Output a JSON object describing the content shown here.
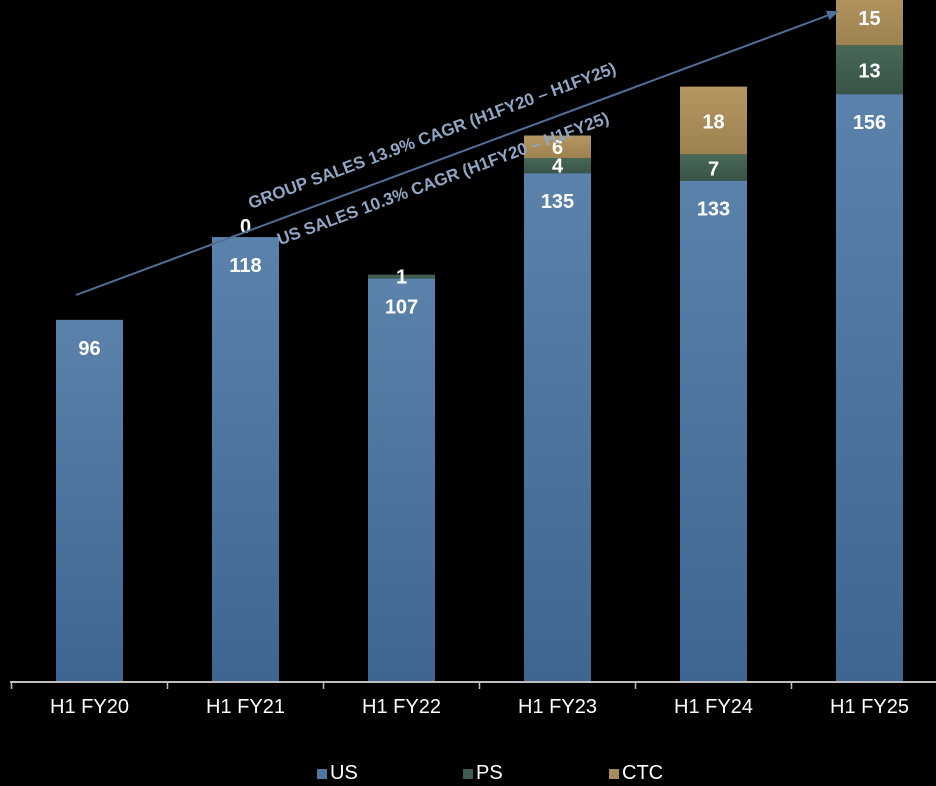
{
  "chart_data": {
    "type": "bar",
    "stacked": true,
    "categories": [
      "H1 FY20",
      "H1 FY21",
      "H1 FY22",
      "H1 FY23",
      "H1 FY24",
      "H1 FY25"
    ],
    "series": [
      {
        "name": "US",
        "color": "#4f77a0",
        "values": [
          96,
          118,
          107,
          135,
          133,
          156
        ]
      },
      {
        "name": "PS",
        "color": "#3f5c50",
        "values": [
          null,
          0,
          1,
          4,
          7,
          13
        ]
      },
      {
        "name": "CTC",
        "color": "#a98d58",
        "values": [
          null,
          null,
          null,
          6,
          18,
          15
        ]
      }
    ],
    "ylim": [
      0,
      200
    ],
    "grid": false,
    "legend_position": "bottom",
    "annotations": [
      "GROUP SALES 13.9% CAGR (H1FY20 – H1FY25)",
      "US SALES 10.3% CAGR (H1FY20 – H1FY25)"
    ],
    "colors": {
      "background": "#000000",
      "annotation": "#8fa6c4",
      "arrow": "#4f6f99",
      "text": "#ffffff"
    }
  }
}
